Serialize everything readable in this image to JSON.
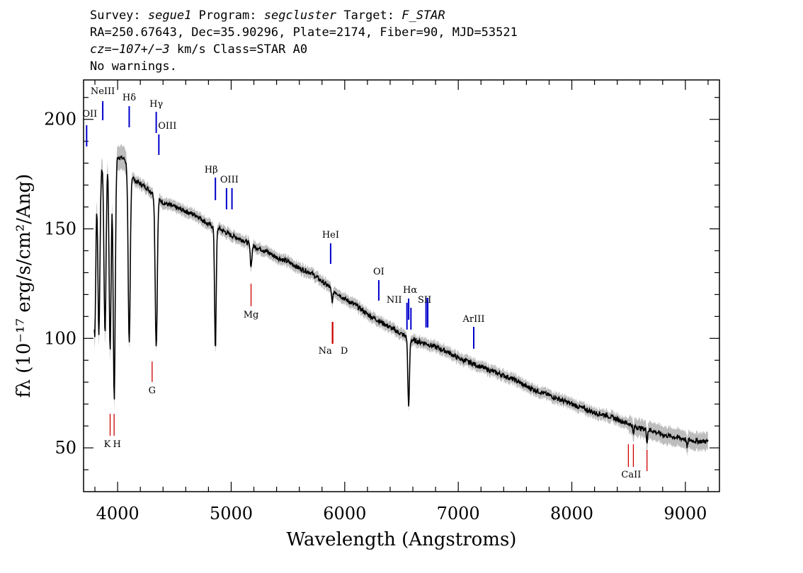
{
  "header": {
    "line1": {
      "survey_key": "Survey:",
      "survey": "segue1",
      "program_key": "Program:",
      "program": "segcluster",
      "target_key": "Target:",
      "target": "F_STAR"
    },
    "line2": "RA=250.67643, Dec=35.90296, Plate=2174, Fiber=90, MJD=53521",
    "line3": {
      "cz": "cz=−107+/−3",
      "rest": " km/s Class=STAR A0"
    },
    "line4": "No warnings."
  },
  "chart_data": {
    "type": "line",
    "xlabel": "Wavelength (Angstroms)",
    "ylabel": "fλ (10⁻¹⁷ erg/s/cm²/Ang)",
    "xlim": [
      3700,
      9300
    ],
    "ylim": [
      30,
      218
    ],
    "x_ticks": [
      4000,
      5000,
      6000,
      7000,
      8000,
      9000
    ],
    "x_tick_labels": [
      "4000",
      "5000",
      "6000",
      "7000",
      "8000",
      "9000"
    ],
    "y_ticks": [
      50,
      100,
      150,
      200
    ],
    "y_tick_labels": [
      "50",
      "100",
      "150",
      "200"
    ],
    "series": [
      {
        "color": "#000000",
        "x": [
          3800,
          3850,
          3900,
          3950,
          4000,
          4060,
          4150,
          4250,
          4400,
          4500,
          4600,
          4700,
          4800,
          4900,
          5000,
          5100,
          5200,
          5300,
          5400,
          5500,
          5600,
          5700,
          5800,
          5900,
          6000,
          6100,
          6200,
          6300,
          6400,
          6500,
          6600,
          6700,
          6800,
          6900,
          7000,
          7100,
          7200,
          7300,
          7400,
          7500,
          7600,
          7700,
          7800,
          7900,
          8000,
          8100,
          8200,
          8300,
          8400,
          8500,
          8600,
          8700,
          8800,
          8900,
          9000,
          9100,
          9200
        ],
        "y": [
          175,
          178,
          182,
          183,
          183,
          182,
          172,
          169,
          162,
          160,
          158,
          156,
          152,
          150,
          147,
          145,
          142,
          140,
          137,
          135,
          132,
          130,
          126,
          122,
          118,
          115,
          111,
          108,
          105,
          102,
          99,
          98,
          96,
          94,
          91,
          89,
          87,
          85,
          83,
          81,
          78,
          76,
          74,
          72,
          70,
          68,
          66,
          65,
          63,
          61,
          59,
          58,
          56,
          55,
          54,
          53,
          53
        ]
      }
    ],
    "absorption": [
      {
        "x": 3798,
        "y": 100
      },
      {
        "x": 3835,
        "y": 102
      },
      {
        "x": 3889,
        "y": 102
      },
      {
        "x": 3934,
        "y": 95
      },
      {
        "x": 3970,
        "y": 72
      },
      {
        "x": 4102,
        "y": 97
      },
      {
        "x": 4340,
        "y": 96
      },
      {
        "x": 4861,
        "y": 95
      },
      {
        "x": 5175,
        "y": 133
      },
      {
        "x": 5890,
        "y": 117
      },
      {
        "x": 6563,
        "y": 68
      },
      {
        "x": 8542,
        "y": 56
      },
      {
        "x": 8662,
        "y": 53
      },
      {
        "x": 9015,
        "y": 50
      }
    ],
    "emission_lines": [
      {
        "label": "OII",
        "x": 3727
      },
      {
        "label": "NeIII",
        "x": 3869
      },
      {
        "label": "Hδ",
        "x": 4102
      },
      {
        "label": "Hγ",
        "x": 4340
      },
      {
        "label": "OIII",
        "x": 4363
      },
      {
        "label": "Hβ",
        "x": 4861
      },
      {
        "label": "OIII",
        "x": 4959
      },
      {
        "label": "OIII",
        "x": 5007
      },
      {
        "label": "HeI",
        "x": 5876
      },
      {
        "label": "OI",
        "x": 6300
      },
      {
        "label": "NII",
        "x": 6548
      },
      {
        "label": "Hα",
        "x": 6563
      },
      {
        "label": "NII",
        "x": 6583
      },
      {
        "label": "SII",
        "x": 6716
      },
      {
        "label": "SII",
        "x": 6731
      },
      {
        "label": "ArIII",
        "x": 7136
      }
    ],
    "absorption_labels": [
      {
        "label": "K",
        "x": 3934
      },
      {
        "label": "H",
        "x": 3969
      },
      {
        "label": "G",
        "x": 4304
      },
      {
        "label": "Mg",
        "x": 5175
      },
      {
        "label": "Na",
        "x": 5890
      },
      {
        "label": "D",
        "x": 5896
      },
      {
        "label": "CaII",
        "x": 8498
      },
      {
        "label": "CaII",
        "x": 8542
      },
      {
        "label": "CaII",
        "x": 8662
      }
    ],
    "colors": {
      "spectrum": "#000000",
      "error_band": "#bdbdbd",
      "emission": "#0000cc",
      "absorption": "#cc0000"
    }
  }
}
